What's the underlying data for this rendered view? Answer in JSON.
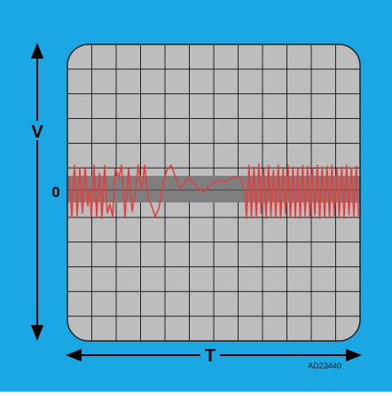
{
  "diagram": {
    "background_color": "#1aa7e3",
    "screen_color": "#bdbdbd",
    "grid_color": "#222222",
    "band_color": "#7f7f7f",
    "signal_color": "#e04040",
    "grid": {
      "columns": 12,
      "rows": 12
    },
    "labels": {
      "vertical_axis": "V",
      "horizontal_axis": "T",
      "zero_level": "0",
      "figure_code": "AD23440"
    },
    "signal": {
      "description_icon": "noisy-signal-burst",
      "regions": [
        {
          "name": "high-frequency-start",
          "type": "noise"
        },
        {
          "name": "low-frequency-middle",
          "type": "damped"
        },
        {
          "name": "high-frequency-end",
          "type": "noise"
        }
      ]
    }
  }
}
